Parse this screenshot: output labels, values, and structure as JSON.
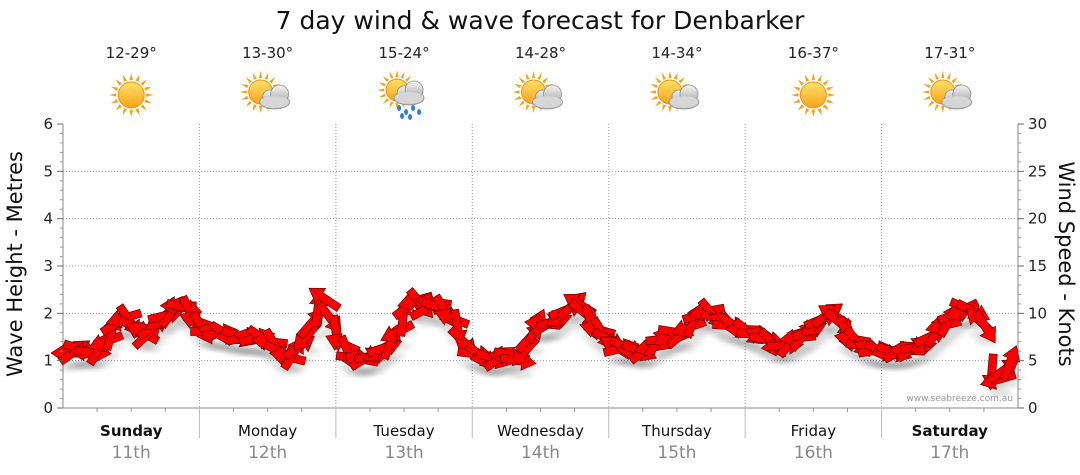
{
  "chart_data": {
    "type": "line",
    "title": "7 day wind & wave forecast for Denbarker",
    "ylabel_left": "Wave Height - Metres",
    "ylabel_right": "Wind Speed - Knots",
    "ylim_left": [
      0,
      6
    ],
    "ylim_right": [
      0,
      30
    ],
    "yticks_left": [
      "0",
      "1",
      "2",
      "3",
      "4",
      "5",
      "6"
    ],
    "yticks_right": [
      "0",
      "5",
      "10",
      "15",
      "20",
      "25",
      "30"
    ],
    "grid": true,
    "watermark": "www.seabreeze.com.au",
    "days": [
      {
        "name": "Sunday",
        "date": "11th",
        "temp": "12-29°",
        "weather": "sunny",
        "bold": true
      },
      {
        "name": "Monday",
        "date": "12th",
        "temp": "13-30°",
        "weather": "partly-cloudy",
        "bold": false
      },
      {
        "name": "Tuesday",
        "date": "13th",
        "temp": "15-24°",
        "weather": "showers",
        "bold": false
      },
      {
        "name": "Wednesday",
        "date": "14th",
        "temp": "14-28°",
        "weather": "partly-cloudy",
        "bold": false
      },
      {
        "name": "Thursday",
        "date": "15th",
        "temp": "14-34°",
        "weather": "partly-cloudy",
        "bold": false
      },
      {
        "name": "Friday",
        "date": "16th",
        "temp": "16-37°",
        "weather": "sunny",
        "bold": false
      },
      {
        "name": "Saturday",
        "date": "17th",
        "temp": "17-31°",
        "weather": "partly-cloudy",
        "bold": true
      }
    ],
    "series": [
      {
        "name": "Wind",
        "units": "knots",
        "color": "#ff0000",
        "values": [
          5.8,
          6.0,
          6.2,
          6.0,
          5.9,
          6.3,
          7.0,
          8.0,
          9.0,
          9.5,
          9.2,
          8.5,
          8.0,
          7.8,
          8.6,
          9.4,
          9.8,
          10.2,
          10.8,
          10.6,
          10.0,
          9.2,
          8.4,
          8.1,
          8.0,
          7.9,
          7.8,
          7.6,
          7.5,
          7.5,
          7.4,
          7.4,
          7.3,
          7.0,
          6.6,
          5.9,
          5.4,
          5.8,
          6.5,
          7.5,
          9.0,
          10.5,
          11.6,
          9.5,
          7.9,
          6.8,
          5.8,
          5.3,
          5.2,
          5.3,
          5.5,
          6.0,
          6.4,
          7.0,
          8.0,
          9.5,
          10.8,
          11.3,
          11.0,
          10.5,
          11.2,
          10.6,
          10.2,
          9.5,
          8.5,
          7.0,
          6.1,
          5.7,
          5.5,
          5.3,
          5.2,
          5.3,
          5.6,
          5.7,
          5.0,
          5.9,
          7.5,
          8.7,
          8.9,
          8.9,
          9.2,
          9.8,
          10.4,
          10.9,
          11.0,
          10.0,
          9.0,
          8.3,
          7.8,
          7.2,
          6.5,
          6.3,
          6.4,
          6.2,
          6.0,
          6.1,
          6.4,
          7.0,
          7.3,
          7.6,
          8.0,
          7.8,
          8.5,
          9.3,
          9.9,
          10.2,
          9.9,
          9.4,
          9.0,
          8.7,
          8.5,
          8.3,
          8.0,
          7.8,
          7.5,
          7.2,
          6.8,
          6.5,
          6.6,
          7.0,
          7.4,
          7.7,
          8.2,
          8.8,
          9.4,
          9.9,
          9.8,
          9.0,
          7.8,
          7.3,
          6.9,
          6.5,
          6.2,
          6.1,
          6.0,
          6.0,
          5.9,
          6.0,
          6.1,
          6.3,
          6.5,
          7.0,
          7.6,
          8.2,
          8.7,
          9.3,
          9.9,
          10.3,
          10.5,
          10.2,
          9.2,
          8.5,
          3.8,
          3.0,
          4.0,
          4.8
        ]
      }
    ]
  }
}
